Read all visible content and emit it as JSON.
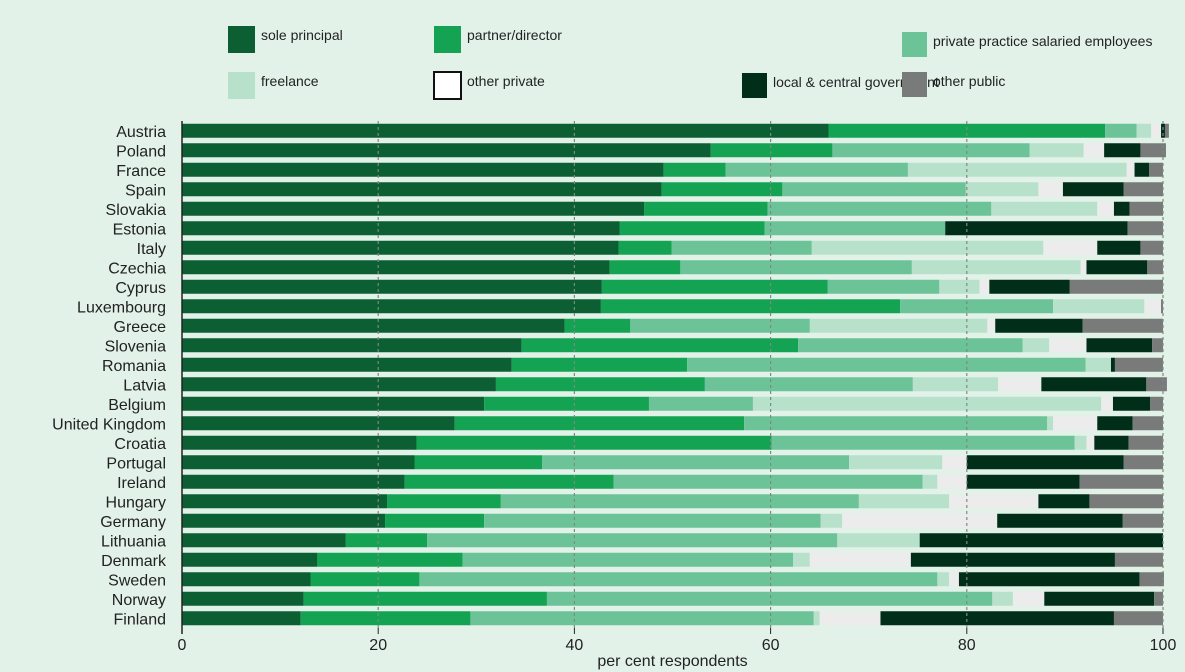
{
  "chart_data": {
    "type": "bar",
    "orientation": "horizontal",
    "stacked": true,
    "xlabel": "per cent respondents",
    "xlim": [
      0,
      100
    ],
    "xticks": [
      0,
      20,
      40,
      60,
      80,
      100
    ],
    "grid": true,
    "legend_position": "top",
    "categories": [
      "Austria",
      "Poland",
      "France",
      "Spain",
      "Slovakia",
      "Estonia",
      "Italy",
      "Czechia",
      "Cyprus",
      "Luxembourg",
      "Greece",
      "Slovenia",
      "Romania",
      "Latvia",
      "Belgium",
      "United Kingdom",
      "Croatia",
      "Portugal",
      "Ireland",
      "Hungary",
      "Germany",
      "Lithuania",
      "Denmark",
      "Sweden",
      "Norway",
      "Finland"
    ],
    "series": [
      {
        "name": "sole principal",
        "color": "#0c5e33",
        "values": [
          65.9,
          53.9,
          49.1,
          48.9,
          47.1,
          44.6,
          44.5,
          43.6,
          42.8,
          42.7,
          39.0,
          34.6,
          33.6,
          32.0,
          30.8,
          27.8,
          23.9,
          23.7,
          22.7,
          20.9,
          20.7,
          16.7,
          13.8,
          13.1,
          12.4,
          12.1
        ]
      },
      {
        "name": "partner/director",
        "color": "#14a352",
        "values": [
          28.2,
          12.4,
          6.3,
          12.3,
          12.6,
          14.8,
          5.4,
          7.2,
          23.0,
          30.5,
          6.7,
          28.2,
          17.9,
          21.3,
          16.8,
          29.5,
          36.2,
          13.0,
          21.3,
          11.6,
          10.1,
          8.3,
          14.8,
          11.1,
          24.8,
          17.3
        ]
      },
      {
        "name": "private practice salaried employees",
        "color": "#6cc397",
        "values": [
          3.2,
          20.1,
          18.6,
          18.7,
          22.8,
          18.4,
          14.3,
          23.6,
          11.4,
          15.6,
          18.3,
          22.9,
          40.6,
          21.2,
          10.6,
          30.9,
          30.9,
          31.3,
          31.5,
          36.5,
          34.3,
          41.8,
          33.7,
          52.8,
          45.4,
          35.0
        ]
      },
      {
        "name": "freelance",
        "color": "#b7e1cb",
        "values": [
          1.5,
          5.5,
          22.3,
          7.4,
          10.8,
          0,
          23.6,
          17.2,
          4.1,
          9.3,
          18.1,
          2.7,
          2.6,
          8.7,
          35.5,
          0.6,
          1.2,
          9.5,
          1.5,
          9.2,
          2.2,
          8.4,
          1.7,
          1.2,
          2.1,
          0.6
        ]
      },
      {
        "name": "other private",
        "color": "#ececec",
        "values": [
          1.0,
          2.1,
          0.8,
          2.5,
          1.7,
          0,
          5.5,
          0.6,
          1.0,
          1.7,
          0.8,
          3.8,
          0,
          4.4,
          1.2,
          4.5,
          0.8,
          2.5,
          3.0,
          9.1,
          15.8,
          0,
          10.3,
          1.0,
          3.2,
          6.2
        ]
      },
      {
        "name": "local & central government",
        "color": "#002e18",
        "values": [
          0.4,
          3.7,
          1.5,
          6.2,
          1.6,
          18.6,
          4.4,
          6.2,
          8.2,
          0,
          8.9,
          6.7,
          0.4,
          10.7,
          3.8,
          3.6,
          3.5,
          16.0,
          11.5,
          5.2,
          12.8,
          24.8,
          20.8,
          18.4,
          11.2,
          23.8
        ]
      },
      {
        "name": "other public",
        "color": "#787b79",
        "values": [
          0.4,
          2.6,
          1.4,
          4.0,
          3.4,
          3.6,
          2.3,
          1.6,
          9.5,
          0.2,
          8.2,
          1.1,
          4.9,
          2.1,
          1.3,
          3.1,
          3.5,
          4.0,
          8.5,
          7.5,
          4.1,
          0,
          4.9,
          2.5,
          0.9,
          5.0
        ]
      }
    ]
  }
}
